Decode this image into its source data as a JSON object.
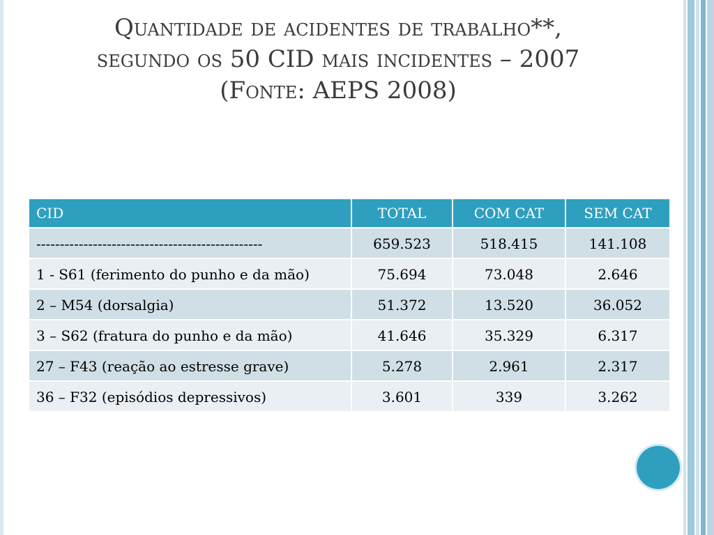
{
  "title": {
    "line1": "Quantidade de acidentes de trabalho**,",
    "line2": "segundo os 50 CID mais incidentes – 2007",
    "line3": "(Fonte: AEPS 2008)"
  },
  "table": {
    "headers": {
      "cid": "CID",
      "total": "TOTAL",
      "com_cat": "COM CAT",
      "sem_cat": "SEM CAT"
    },
    "rows": [
      {
        "cid": "------------------------------------------------",
        "total": "659.523",
        "com_cat": "518.415",
        "sem_cat": "141.108"
      },
      {
        "cid": "1 - S61 (ferimento do punho e da mão)",
        "total": "75.694",
        "com_cat": "73.048",
        "sem_cat": "2.646"
      },
      {
        "cid": "2 – M54 (dorsalgia)",
        "total": "51.372",
        "com_cat": "13.520",
        "sem_cat": "36.052"
      },
      {
        "cid": "3 – S62 (fratura do punho e da mão)",
        "total": "41.646",
        "com_cat": "35.329",
        "sem_cat": "6.317"
      },
      {
        "cid": "27 – F43 (reação ao estresse grave)",
        "total": "5.278",
        "com_cat": "2.961",
        "sem_cat": "2.317"
      },
      {
        "cid": "36 – F32 (episódios depressivos)",
        "total": "3.601",
        "com_cat": "339",
        "sem_cat": "3.262"
      }
    ]
  },
  "colors": {
    "accent": "#2f9fc0",
    "row_dark": "#d0dfe6",
    "row_light": "#e9eff3",
    "title_text": "#3b3b3b"
  }
}
